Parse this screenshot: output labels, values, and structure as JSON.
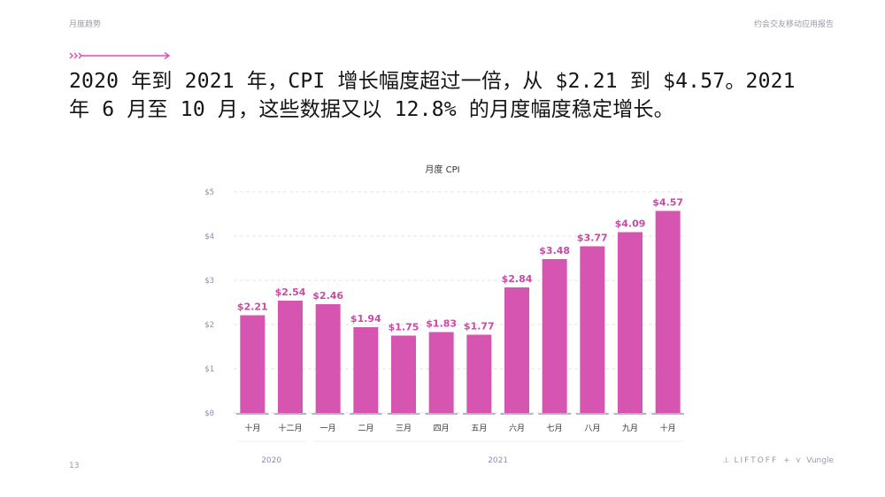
{
  "header": {
    "left_label": "月度趋势",
    "right_label": "约会交友移动应用报告"
  },
  "headline": "2020 年到 2021 年，CPI 增长幅度超过一倍，从 $2.21 到 $4.57。2021 年 6 月至 10 月，这些数据又以 12.8% 的月度幅度稳定增长。",
  "footer": {
    "page_number": "13",
    "logo_left": "LIFTOFF",
    "logo_separator": "+",
    "logo_right": "Vungle"
  },
  "colors": {
    "bar": "#d655b0",
    "label": "#c94aa6",
    "axis_text": "#8c8fb0",
    "grid": "#e3e3ea",
    "accent_arrow": "#e14bb1"
  },
  "chart_data": {
    "type": "bar",
    "title": "月度 CPI",
    "categories": [
      "十月",
      "十二月",
      "一月",
      "二月",
      "三月",
      "四月",
      "五月",
      "六月",
      "七月",
      "八月",
      "九月",
      "十月"
    ],
    "values": [
      2.21,
      2.54,
      2.46,
      1.94,
      1.75,
      1.83,
      1.77,
      2.84,
      3.48,
      3.77,
      4.09,
      4.57
    ],
    "value_labels": [
      "$2.21",
      "$2.54",
      "$2.46",
      "$1.94",
      "$1.75",
      "$1.83",
      "$1.77",
      "$2.84",
      "$3.48",
      "$3.77",
      "$4.09",
      "$4.57"
    ],
    "y_ticks": [
      0,
      1,
      2,
      3,
      4,
      5
    ],
    "y_tick_labels": [
      "$0",
      "$1",
      "$2",
      "$3",
      "$4",
      "$5"
    ],
    "ylim": [
      0,
      5
    ],
    "year_groups": [
      {
        "label": "2020",
        "start": 0,
        "end": 1
      },
      {
        "label": "2021",
        "start": 2,
        "end": 11
      }
    ],
    "xlabel": "",
    "ylabel": "",
    "grid": true,
    "legend": "none"
  }
}
